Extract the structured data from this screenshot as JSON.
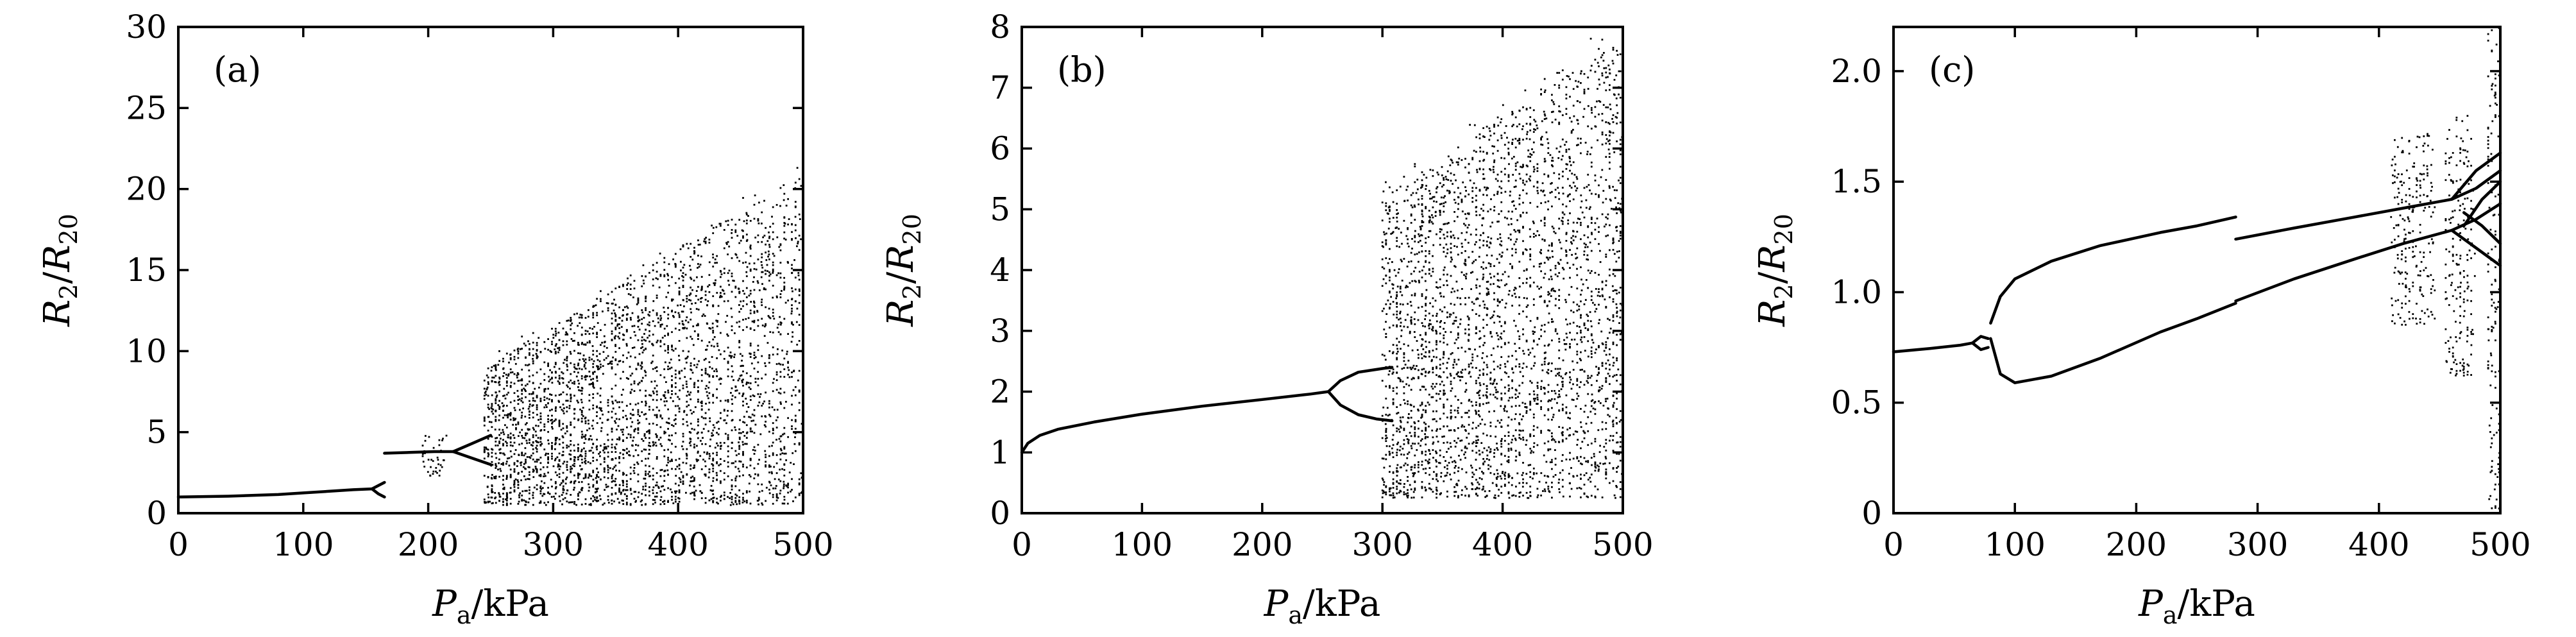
{
  "chart_data": [
    {
      "type": "scatter",
      "panel_label": "(a)",
      "xlabel_main": "P",
      "xlabel_sub": "a",
      "xlabel_unit": "/kPa",
      "ylabel_num": "R",
      "ylabel_num_sub": "2",
      "ylabel_den": "R",
      "ylabel_den_sub": "20",
      "xlim": [
        0,
        500
      ],
      "ylim": [
        0,
        30
      ],
      "xticks": [
        0,
        100,
        200,
        300,
        400,
        500
      ],
      "yticks": [
        0,
        5,
        10,
        15,
        20,
        25,
        30
      ],
      "xtick_labels": [
        "0",
        "100",
        "200",
        "300",
        "400",
        "500"
      ],
      "ytick_labels": [
        "0",
        "5",
        "10",
        "15",
        "20",
        "25",
        "30"
      ],
      "grid": false,
      "curves": [
        [
          [
            0,
            1.0
          ],
          [
            40,
            1.05
          ],
          [
            80,
            1.15
          ],
          [
            100,
            1.25
          ],
          [
            120,
            1.35
          ],
          [
            140,
            1.45
          ],
          [
            155,
            1.5
          ]
        ],
        [
          [
            155,
            1.5
          ],
          [
            160,
            1.7
          ],
          [
            165,
            1.9
          ]
        ],
        [
          [
            155,
            1.5
          ],
          [
            160,
            1.2
          ],
          [
            165,
            1.0
          ]
        ],
        [
          [
            165,
            3.7
          ],
          [
            185,
            3.75
          ],
          [
            205,
            3.8
          ],
          [
            220,
            3.8
          ]
        ],
        [
          [
            220,
            3.8
          ],
          [
            235,
            4.3
          ],
          [
            250,
            4.8
          ]
        ],
        [
          [
            220,
            3.8
          ],
          [
            235,
            3.4
          ],
          [
            250,
            3.0
          ]
        ]
      ],
      "scatter_regions": [
        {
          "x": [
            195,
            215
          ],
          "y": [
            2.2,
            4.8
          ],
          "n": 40,
          "amp": 0
        },
        {
          "x": [
            245,
            500
          ],
          "y": [
            0.5,
            9.0
          ],
          "n": 3400,
          "amp": 12,
          "spikes": true
        }
      ]
    },
    {
      "type": "scatter",
      "panel_label": "(b)",
      "xlabel_main": "P",
      "xlabel_sub": "a",
      "xlabel_unit": "/kPa",
      "ylabel_num": "R",
      "ylabel_num_sub": "2",
      "ylabel_den": "R",
      "ylabel_den_sub": "20",
      "xlim": [
        0,
        500
      ],
      "ylim": [
        0,
        8
      ],
      "xticks": [
        0,
        100,
        200,
        300,
        400,
        500
      ],
      "yticks": [
        0,
        1,
        2,
        3,
        4,
        5,
        6,
        7,
        8
      ],
      "xtick_labels": [
        "0",
        "100",
        "200",
        "300",
        "400",
        "500"
      ],
      "ytick_labels": [
        "0",
        "1",
        "2",
        "3",
        "4",
        "5",
        "6",
        "7",
        "8"
      ],
      "grid": false,
      "curves": [
        [
          [
            0,
            1.0
          ],
          [
            5,
            1.15
          ],
          [
            15,
            1.28
          ],
          [
            30,
            1.38
          ],
          [
            60,
            1.5
          ],
          [
            100,
            1.63
          ],
          [
            150,
            1.76
          ],
          [
            200,
            1.87
          ],
          [
            240,
            1.96
          ],
          [
            255,
            2.0
          ]
        ],
        [
          [
            255,
            2.0
          ],
          [
            265,
            2.18
          ],
          [
            280,
            2.32
          ],
          [
            300,
            2.38
          ],
          [
            308,
            2.4
          ]
        ],
        [
          [
            255,
            2.0
          ],
          [
            265,
            1.78
          ],
          [
            280,
            1.62
          ],
          [
            295,
            1.55
          ],
          [
            308,
            1.52
          ]
        ]
      ],
      "scatter_regions": [
        {
          "x": [
            300,
            500
          ],
          "y": [
            0.25,
            5.2
          ],
          "n": 3200,
          "amp": 2.6,
          "spikes": true
        }
      ]
    },
    {
      "type": "scatter",
      "panel_label": "(c)",
      "xlabel_main": "P",
      "xlabel_sub": "a",
      "xlabel_unit": "/kPa",
      "ylabel_num": "R",
      "ylabel_num_sub": "2",
      "ylabel_den": "R",
      "ylabel_den_sub": "20",
      "xlim": [
        0,
        500
      ],
      "ylim": [
        0,
        2.2
      ],
      "xticks": [
        0,
        100,
        200,
        300,
        400,
        500
      ],
      "yticks": [
        0,
        0.5,
        1.0,
        1.5,
        2.0
      ],
      "xtick_labels": [
        "0",
        "100",
        "200",
        "300",
        "400",
        "500"
      ],
      "ytick_labels": [
        "0",
        "0.5",
        "1.0",
        "1.5",
        "2.0"
      ],
      "grid": false,
      "curves": [
        [
          [
            0,
            0.73
          ],
          [
            30,
            0.745
          ],
          [
            55,
            0.76
          ],
          [
            65,
            0.77
          ]
        ],
        [
          [
            65,
            0.77
          ],
          [
            72,
            0.8
          ],
          [
            78,
            0.79
          ]
        ],
        [
          [
            65,
            0.77
          ],
          [
            72,
            0.74
          ],
          [
            78,
            0.75
          ]
        ],
        [
          [
            80,
            0.86
          ],
          [
            88,
            0.98
          ],
          [
            100,
            1.06
          ],
          [
            130,
            1.14
          ],
          [
            170,
            1.21
          ],
          [
            220,
            1.27
          ],
          [
            250,
            1.3
          ],
          [
            282,
            1.34
          ]
        ],
        [
          [
            80,
            0.79
          ],
          [
            88,
            0.63
          ],
          [
            100,
            0.59
          ],
          [
            130,
            0.62
          ],
          [
            170,
            0.7
          ],
          [
            220,
            0.82
          ],
          [
            250,
            0.88
          ],
          [
            282,
            0.95
          ]
        ],
        [
          [
            282,
            1.24
          ],
          [
            330,
            1.29
          ],
          [
            380,
            1.34
          ],
          [
            420,
            1.38
          ],
          [
            460,
            1.42
          ],
          [
            480,
            1.47
          ],
          [
            500,
            1.55
          ]
        ],
        [
          [
            282,
            0.96
          ],
          [
            330,
            1.06
          ],
          [
            380,
            1.15
          ],
          [
            420,
            1.22
          ],
          [
            460,
            1.28
          ],
          [
            480,
            1.33
          ],
          [
            500,
            1.4
          ]
        ],
        [
          [
            460,
            1.42
          ],
          [
            480,
            1.55
          ],
          [
            500,
            1.63
          ]
        ],
        [
          [
            460,
            1.28
          ],
          [
            480,
            1.2
          ],
          [
            500,
            1.12
          ]
        ],
        [
          [
            470,
            1.36
          ],
          [
            485,
            1.3
          ],
          [
            500,
            1.22
          ]
        ],
        [
          [
            470,
            1.3
          ],
          [
            485,
            1.42
          ],
          [
            500,
            1.5
          ]
        ]
      ],
      "scatter_regions": [
        {
          "x": [
            410,
            445
          ],
          "y": [
            0.85,
            1.72
          ],
          "n": 220,
          "amp": 0,
          "spikes": true
        },
        {
          "x": [
            455,
            478
          ],
          "y": [
            0.62,
            1.8
          ],
          "n": 200,
          "amp": 0,
          "spikes": true
        },
        {
          "x": [
            490,
            500
          ],
          "y": [
            0.02,
            2.2
          ],
          "n": 140,
          "amp": 0,
          "spikes": true
        }
      ]
    }
  ]
}
